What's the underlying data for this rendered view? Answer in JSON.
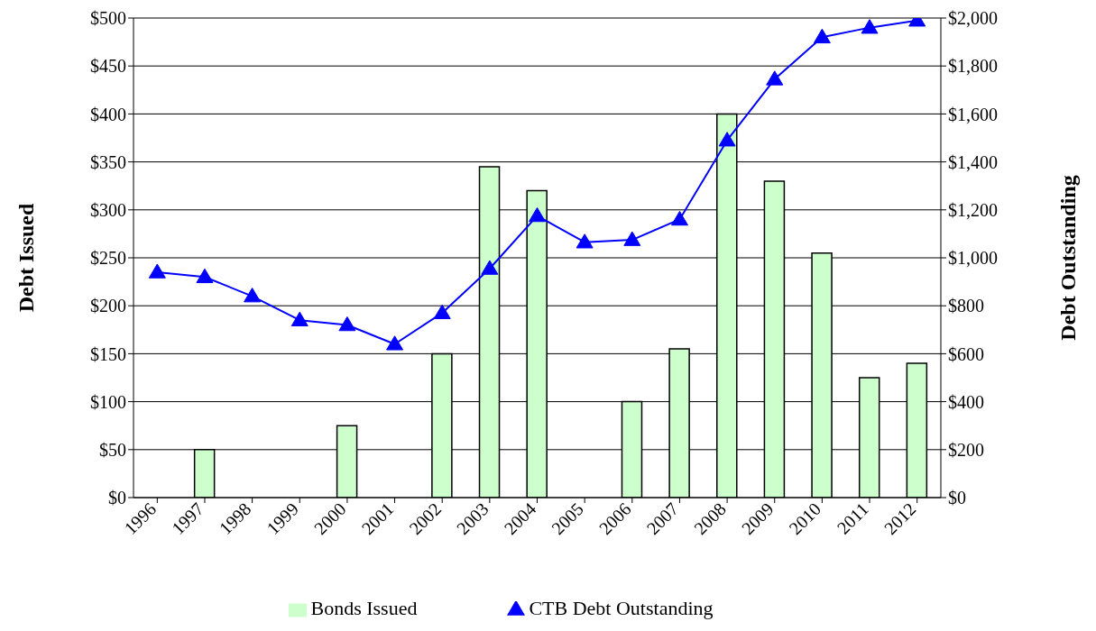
{
  "chart_data": {
    "type": "bar",
    "ylabel": "Debt Issued",
    "y2label": "Debt Outstanding",
    "categories": [
      "1996",
      "1997",
      "1998",
      "1999",
      "2000",
      "2001",
      "2002",
      "2003",
      "2004",
      "2005",
      "2006",
      "2007",
      "2008",
      "2009",
      "2010",
      "2011",
      "2012"
    ],
    "series": [
      {
        "name": "Bonds Issued",
        "color": "#ccffcc",
        "values": [
          null,
          50,
          null,
          null,
          75,
          null,
          150,
          345,
          320,
          null,
          100,
          155,
          400,
          330,
          255,
          125,
          140
        ]
      },
      {
        "name": "CTB Debt Outstanding",
        "type": "line",
        "axis": "y2",
        "color": "#0000ff",
        "marker": "triangle",
        "values": [
          940,
          920,
          840,
          740,
          720,
          640,
          770,
          955,
          1175,
          1065,
          1075,
          1160,
          1490,
          1745,
          1920,
          1960,
          1990
        ]
      }
    ],
    "ylim": [
      0,
      500
    ],
    "yticks": [
      {
        "value": 0,
        "label": "$0"
      },
      {
        "value": 50,
        "label": "$50"
      },
      {
        "value": 100,
        "label": "$100"
      },
      {
        "value": 150,
        "label": "$150"
      },
      {
        "value": 200,
        "label": "$200"
      },
      {
        "value": 250,
        "label": "$250"
      },
      {
        "value": 300,
        "label": "$300"
      },
      {
        "value": 350,
        "label": "$350"
      },
      {
        "value": 400,
        "label": "$400"
      },
      {
        "value": 450,
        "label": "$450"
      },
      {
        "value": 500,
        "label": "$500"
      }
    ],
    "y2lim": [
      0,
      2000
    ],
    "y2ticks": [
      {
        "value": 0,
        "label": "$0"
      },
      {
        "value": 200,
        "label": "$200"
      },
      {
        "value": 400,
        "label": "$400"
      },
      {
        "value": 600,
        "label": "$600"
      },
      {
        "value": 800,
        "label": "$800"
      },
      {
        "value": 1000,
        "label": "$1,000"
      },
      {
        "value": 1200,
        "label": "$1,200"
      },
      {
        "value": 1400,
        "label": "$1,400"
      },
      {
        "value": 1600,
        "label": "$1,600"
      },
      {
        "value": 1800,
        "label": "$1,800"
      },
      {
        "value": 2000,
        "label": "$2,000"
      }
    ],
    "grid": "y",
    "legend": "bottom"
  }
}
